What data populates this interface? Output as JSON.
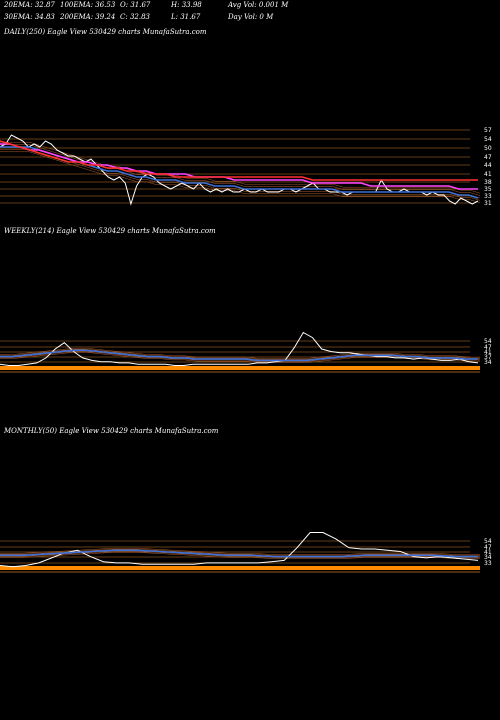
{
  "header": {
    "row1": [
      {
        "text": "20EMA: 32.87"
      },
      {
        "text": "100EMA: 36.53"
      },
      {
        "text": "O: 31.67"
      },
      {
        "text": "H: 33.98"
      },
      {
        "text": "Avg Vol: 0.001 M"
      }
    ],
    "row2": [
      {
        "text": "30EMA: 34.83"
      },
      {
        "text": "200EMA: 39.24"
      },
      {
        "text": "C: 32.83"
      },
      {
        "text": "L: 31.67"
      },
      {
        "text": "Day Vol: 0  M"
      }
    ]
  },
  "colors": {
    "background": "#000000",
    "price": "#ffffff",
    "ema20": "#3b6fd6",
    "ema30": "#4a80e8",
    "ema100": "#ff44ff",
    "ema200": "#ff3030",
    "sr_line": "#c87828",
    "ema_band": "#b06030",
    "bottom_band": "#ff8c00"
  },
  "chart_data": [
    {
      "type": "line",
      "title": "DAILY(250) Eagle  View  530429 charts MunafaSutra.com",
      "y_tick_labels": [
        "57",
        "54",
        "50",
        "47",
        "44",
        "41",
        "38",
        "35",
        "33",
        "31"
      ],
      "series": [
        {
          "name": "Price",
          "color": "#ffffff",
          "values": [
            50,
            51,
            54,
            53,
            52,
            50,
            51,
            50,
            52,
            51,
            49,
            48,
            47,
            47,
            46,
            45,
            46,
            44,
            42,
            40,
            39,
            40,
            38,
            31,
            37,
            40,
            41,
            40,
            38,
            37,
            36,
            37,
            38,
            37,
            36,
            38,
            36,
            35,
            36,
            35,
            36,
            35,
            35,
            36,
            35,
            35,
            36,
            35,
            35,
            35,
            36,
            36,
            35,
            36,
            37,
            38,
            36,
            36,
            35,
            35,
            35,
            34,
            35,
            35,
            35,
            35,
            35,
            39,
            36,
            35,
            35,
            36,
            35,
            35,
            35,
            34,
            35,
            34,
            34,
            32,
            31,
            33,
            32,
            31,
            32
          ]
        },
        {
          "name": "20EMA",
          "color": "#3b6fd6",
          "values": [
            50,
            50,
            50,
            50,
            49,
            48,
            47,
            46,
            45,
            44,
            43,
            42,
            42,
            41,
            40,
            40,
            39,
            39,
            39,
            38,
            38,
            38,
            37,
            37,
            37,
            36,
            36,
            36,
            36,
            36,
            36,
            36,
            36,
            36,
            36,
            35,
            35,
            35,
            35,
            35,
            35,
            35,
            35,
            35,
            35,
            35,
            35,
            34,
            34,
            33
          ]
        },
        {
          "name": "100EMA",
          "color": "#ff44ff",
          "values": [
            51,
            51,
            50,
            49,
            49,
            48,
            47,
            46,
            45,
            45,
            44,
            44,
            43,
            43,
            42,
            42,
            41,
            41,
            41,
            41,
            40,
            40,
            40,
            40,
            39,
            39,
            39,
            39,
            39,
            39,
            39,
            39,
            38,
            38,
            38,
            38,
            38,
            38,
            37,
            37,
            37,
            37,
            37,
            37,
            37,
            37,
            37,
            36,
            36,
            36
          ]
        },
        {
          "name": "200EMA",
          "color": "#ff3030",
          "values": [
            52,
            51,
            50,
            49,
            48,
            47,
            46,
            45,
            45,
            44,
            44,
            43,
            43,
            42,
            42,
            41,
            41,
            41,
            40,
            40,
            40,
            40,
            40,
            40,
            40,
            40,
            40,
            40,
            40,
            40,
            40,
            40,
            39,
            39,
            39,
            39,
            39,
            39,
            39,
            39,
            39,
            39,
            39,
            39,
            39,
            39,
            39,
            39,
            39,
            39
          ]
        }
      ]
    },
    {
      "type": "line",
      "title": "WEEKLY(214) Eagle  View  530429 charts MunafaSutra.com",
      "y_tick_labels": [
        "54",
        "47",
        "41",
        "37",
        "34"
      ],
      "series": [
        {
          "name": "Price",
          "color": "#ffffff",
          "values": [
            35,
            34,
            34,
            35,
            36,
            40,
            47,
            52,
            45,
            40,
            38,
            37,
            37,
            36,
            36,
            35,
            35,
            35,
            35,
            34,
            34,
            35,
            35,
            35,
            35,
            35,
            35,
            35,
            36,
            36,
            37,
            38,
            48,
            60,
            56,
            47,
            45,
            44,
            44,
            43,
            42,
            41,
            41,
            40,
            40,
            39,
            40,
            39,
            38,
            38,
            39,
            37,
            36
          ]
        },
        {
          "name": "EMA",
          "color": "#3b6fd6",
          "values": [
            41,
            41,
            42,
            43,
            44,
            45,
            46,
            46,
            45,
            44,
            43,
            42,
            41,
            41,
            40,
            40,
            39,
            39,
            39,
            39,
            39,
            38,
            38,
            38,
            38,
            38,
            39,
            40,
            41,
            42,
            42,
            42,
            42,
            41,
            41,
            40,
            40,
            40,
            39,
            39
          ]
        }
      ]
    },
    {
      "type": "line",
      "title": "MONTHLY(50) Eagle  View  530429 charts MunafaSutra.com",
      "y_tick_labels": [
        "54",
        "47",
        "41",
        "34",
        "33"
      ],
      "series": [
        {
          "name": "Price",
          "color": "#ffffff",
          "values": [
            34,
            33,
            34,
            36,
            40,
            44,
            46,
            41,
            37,
            36,
            36,
            35,
            35,
            35,
            35,
            35,
            36,
            36,
            36,
            36,
            36,
            37,
            38,
            48,
            60,
            60,
            55,
            48,
            47,
            47,
            46,
            45,
            41,
            40,
            41,
            40,
            39,
            38
          ]
        },
        {
          "name": "EMA",
          "color": "#3b6fd6",
          "values": [
            42,
            42,
            43,
            44,
            45,
            46,
            46,
            45,
            44,
            43,
            42,
            42,
            41,
            41,
            41,
            41,
            42,
            42,
            42,
            42,
            41,
            41
          ]
        }
      ]
    }
  ]
}
